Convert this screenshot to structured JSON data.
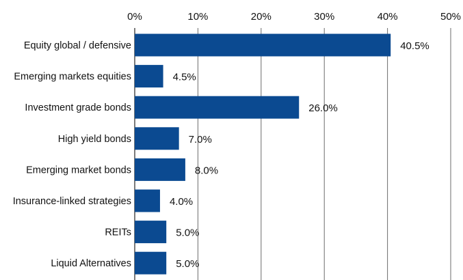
{
  "chart_data": {
    "type": "bar",
    "orientation": "horizontal",
    "title": "",
    "xlabel": "",
    "ylabel": "",
    "x_axis_position": "top",
    "xlim": [
      0,
      50
    ],
    "x_ticks": [
      0,
      10,
      20,
      30,
      40,
      50
    ],
    "x_tick_labels": [
      "0%",
      "10%",
      "20%",
      "30%",
      "40%",
      "50%"
    ],
    "grid": "vertical",
    "legend": "none",
    "categories": [
      "Equity global / defensive",
      "Emerging markets equities",
      "Investment grade bonds",
      "High yield bonds",
      "Emerging market bonds",
      "Insurance-linked strategies",
      "REITs",
      "Liquid Alternatives"
    ],
    "values": [
      40.5,
      4.5,
      26.0,
      7.0,
      8.0,
      4.0,
      5.0,
      5.0
    ],
    "data_labels": [
      "40.5%",
      "4.5%",
      "26.0%",
      "7.0%",
      "8.0%",
      "4.0%",
      "5.0%",
      "5.0%"
    ],
    "colors": {
      "bar": "#0b4a91",
      "grid": "#6b6b6b",
      "text": "#111111"
    }
  }
}
